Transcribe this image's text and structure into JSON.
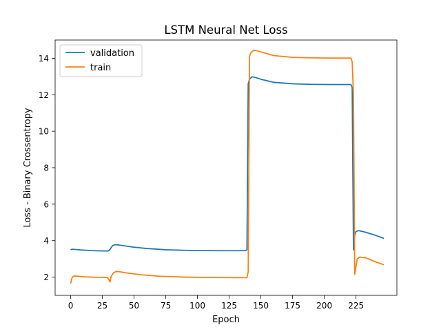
{
  "chart_data": {
    "type": "line",
    "title": "LSTM Neural Net Loss",
    "xlabel": "Epoch",
    "ylabel": "Loss - Binary Crossentropy",
    "xlim": [
      -12.25,
      257.25
    ],
    "ylim": [
      1.0,
      15.0
    ],
    "xticks": [
      0,
      25,
      50,
      75,
      100,
      125,
      150,
      175,
      200,
      225
    ],
    "yticks": [
      2,
      4,
      6,
      8,
      10,
      12,
      14
    ],
    "grid": false,
    "legend": "top-left",
    "series": [
      {
        "name": "validation",
        "color": "#1f77b4",
        "points": [
          [
            0,
            3.49
          ],
          [
            1,
            3.53
          ],
          [
            3,
            3.52
          ],
          [
            8,
            3.49
          ],
          [
            15,
            3.46
          ],
          [
            22,
            3.44
          ],
          [
            29,
            3.43
          ],
          [
            30,
            3.45
          ],
          [
            31,
            3.52
          ],
          [
            33,
            3.72
          ],
          [
            35,
            3.78
          ],
          [
            37,
            3.77
          ],
          [
            42,
            3.72
          ],
          [
            50,
            3.64
          ],
          [
            60,
            3.57
          ],
          [
            75,
            3.5
          ],
          [
            90,
            3.47
          ],
          [
            100,
            3.46
          ],
          [
            115,
            3.45
          ],
          [
            138,
            3.45
          ],
          [
            139,
            3.5
          ],
          [
            140,
            12.6
          ],
          [
            141,
            12.85
          ],
          [
            143,
            12.98
          ],
          [
            145,
            12.96
          ],
          [
            150,
            12.85
          ],
          [
            160,
            12.68
          ],
          [
            175,
            12.6
          ],
          [
            190,
            12.57
          ],
          [
            205,
            12.56
          ],
          [
            221,
            12.56
          ],
          [
            222,
            12.4
          ],
          [
            223,
            3.5
          ],
          [
            224,
            4.3
          ],
          [
            225,
            4.5
          ],
          [
            227,
            4.55
          ],
          [
            232,
            4.47
          ],
          [
            240,
            4.3
          ],
          [
            246,
            4.15
          ],
          [
            247,
            4.12
          ]
        ]
      },
      {
        "name": "train",
        "color": "#ff7f0e",
        "points": [
          [
            0,
            1.65
          ],
          [
            1,
            1.95
          ],
          [
            2,
            2.05
          ],
          [
            4,
            2.06
          ],
          [
            10,
            2.02
          ],
          [
            20,
            1.99
          ],
          [
            29,
            1.98
          ],
          [
            30,
            1.88
          ],
          [
            31,
            1.73
          ],
          [
            32,
            2.05
          ],
          [
            34,
            2.25
          ],
          [
            36,
            2.31
          ],
          [
            38,
            2.3
          ],
          [
            45,
            2.22
          ],
          [
            55,
            2.13
          ],
          [
            70,
            2.05
          ],
          [
            90,
            2.0
          ],
          [
            110,
            1.98
          ],
          [
            130,
            1.97
          ],
          [
            139,
            1.97
          ],
          [
            140,
            2.3
          ],
          [
            141,
            14.1
          ],
          [
            142,
            14.3
          ],
          [
            144,
            14.42
          ],
          [
            146,
            14.43
          ],
          [
            150,
            14.35
          ],
          [
            160,
            14.15
          ],
          [
            175,
            14.05
          ],
          [
            190,
            14.02
          ],
          [
            205,
            14.01
          ],
          [
            221,
            14.01
          ],
          [
            222,
            13.8
          ],
          [
            223,
            12.0
          ],
          [
            224,
            2.15
          ],
          [
            225,
            2.6
          ],
          [
            226,
            3.0
          ],
          [
            228,
            3.1
          ],
          [
            233,
            3.05
          ],
          [
            240,
            2.85
          ],
          [
            246,
            2.7
          ],
          [
            247,
            2.68
          ]
        ]
      }
    ]
  }
}
